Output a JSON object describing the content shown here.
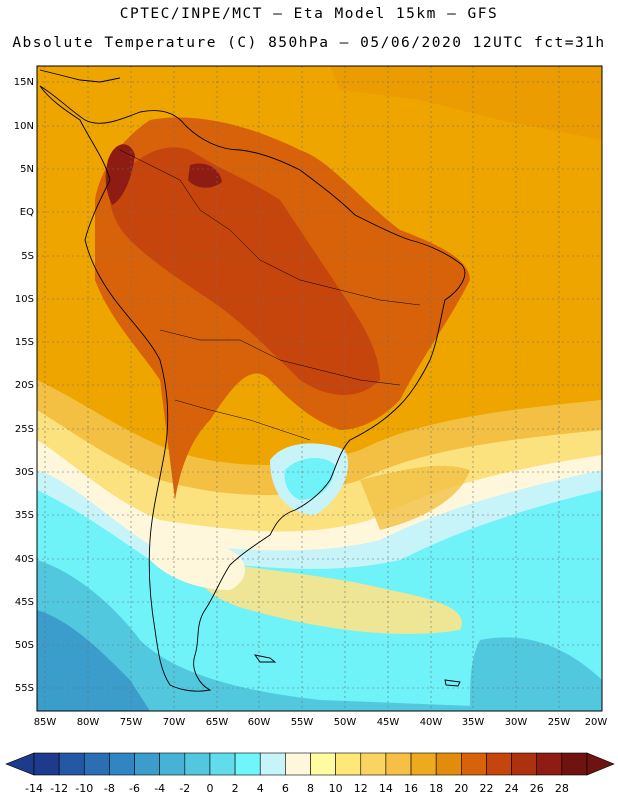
{
  "header": {
    "line1": "CPTEC/INPE/MCT –  Eta Model 15km – GFS",
    "line2": "Absolute Temperature (C) 850hPa – 05/06/2020 12UTC fct=31h"
  },
  "map": {
    "lat_labels": [
      "15N",
      "10N",
      "5N",
      "EQ",
      "5S",
      "10S",
      "15S",
      "20S",
      "25S",
      "30S",
      "35S",
      "40S",
      "45S",
      "50S",
      "55S"
    ],
    "lon_labels": [
      "85W",
      "80W",
      "75W",
      "70W",
      "65W",
      "60W",
      "55W",
      "50W",
      "45W",
      "40W",
      "35W",
      "30W",
      "25W",
      "20W"
    ],
    "colors": {
      "ocean_warm": "#eea500",
      "land_hot": "#c8520e",
      "cold": "#5ee8f0",
      "very_cold": "#2ca6d6"
    }
  },
  "colorbar": {
    "labels": [
      "-14",
      "-12",
      "-10",
      "-8",
      "-6",
      "-4",
      "-2",
      "0",
      "2",
      "4",
      "6",
      "8",
      "10",
      "12",
      "14",
      "16",
      "18",
      "20",
      "22",
      "24",
      "26",
      "28"
    ],
    "colors": [
      "#1d3a8c",
      "#2457a4",
      "#2a6fb4",
      "#2f86c2",
      "#3b9dcc",
      "#46b3d6",
      "#52c8df",
      "#60dcea",
      "#6ff6fb",
      "#c6f4f8",
      "#fef7dc",
      "#fffca0",
      "#fde878",
      "#fad360",
      "#f5c045",
      "#edaa1e",
      "#e28c0c",
      "#d8620a",
      "#c5450c",
      "#ae310f",
      "#8e1c12",
      "#6f1311"
    ]
  }
}
